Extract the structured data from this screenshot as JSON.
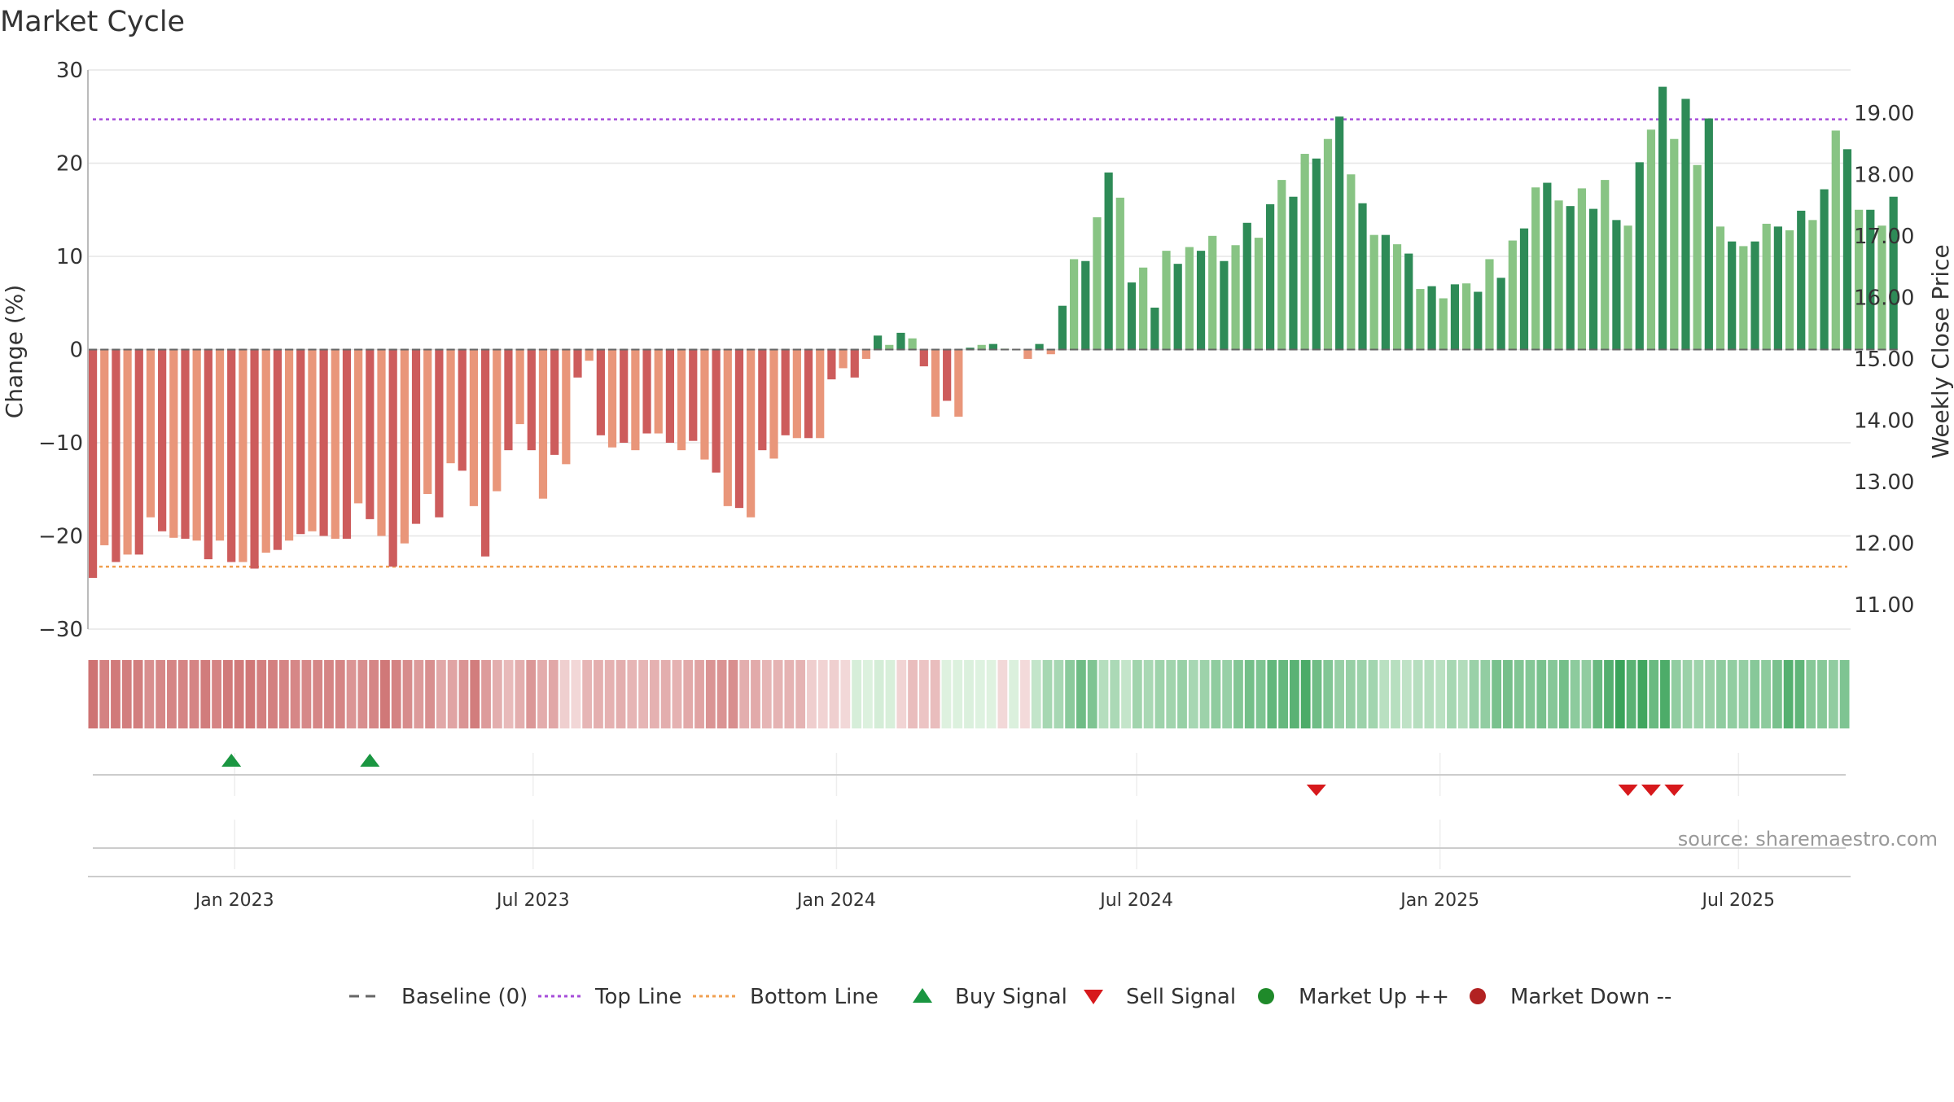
{
  "title": "Market Cycle",
  "source": "source: sharemaestro.com",
  "colors": {
    "up_dark": "#2e8b57",
    "up_light": "#88c484",
    "down_dark": "#cd5c5c",
    "down_light": "#e9967a",
    "top_line": "#a64dd9",
    "bottom_line": "#f0a050",
    "baseline": "#666666",
    "buy": "#1a9641",
    "sell": "#d7191c",
    "market_up": "#1f8a2a",
    "market_down": "#b22222",
    "grid": "#e6e6e6",
    "axis_text": "#333333"
  },
  "chart_data": {
    "type": "bar",
    "title": "Market Cycle",
    "ylabel_left": "Change (%)",
    "ylabel_right": "Weekly Close Price",
    "ylim_left": [
      -30,
      30
    ],
    "ylim_right": [
      10.6,
      19.7
    ],
    "y_ticks_left": [
      30,
      20,
      10,
      0,
      -10,
      -20,
      -30
    ],
    "y_tick_labels_left": [
      "30",
      "20",
      "10",
      "0",
      "−10",
      "−20",
      "−30"
    ],
    "y_ticks_right": [
      19,
      18,
      17,
      16,
      15,
      14,
      13,
      12,
      11
    ],
    "y_tick_labels_right": [
      "19.00",
      "18.00",
      "17.00",
      "16.00",
      "15.00",
      "14.00",
      "13.00",
      "12.00",
      "11.00"
    ],
    "x_start": "2022-10-04",
    "x_end": "2025-09-07",
    "x_ticks": [
      "2023-01-01",
      "2023-07-01",
      "2024-01-01",
      "2024-07-01",
      "2025-01-01",
      "2025-07-01"
    ],
    "x_tick_labels": [
      "Jan 2023",
      "Jul 2023",
      "Jan 2024",
      "Jul 2024",
      "Jan 2025",
      "Jul 2025"
    ],
    "first_bar_date": "2022-10-07",
    "bar_interval_days": 7,
    "bar_values": [
      -24.5,
      -21.0,
      -22.8,
      -22.0,
      -22.0,
      -18.0,
      -19.5,
      -20.2,
      -20.3,
      -20.5,
      -22.5,
      -20.5,
      -22.8,
      -22.8,
      -23.5,
      -21.8,
      -21.5,
      -20.5,
      -19.8,
      -19.5,
      -20.0,
      -20.3,
      -20.3,
      -16.5,
      -18.2,
      -20.0,
      -23.3,
      -20.8,
      -18.7,
      -15.5,
      -18.0,
      -12.2,
      -13.0,
      -16.8,
      -22.2,
      -15.2,
      -10.8,
      -8.0,
      -10.8,
      -16.0,
      -11.3,
      -12.3,
      -3.0,
      -1.2,
      -9.2,
      -10.5,
      -10.0,
      -10.8,
      -9.0,
      -9.0,
      -10.0,
      -10.8,
      -9.8,
      -11.8,
      -13.2,
      -16.8,
      -17.0,
      -18.0,
      -10.8,
      -11.7,
      -9.2,
      -9.5,
      -9.5,
      -9.5,
      -3.2,
      -2.0,
      -3.0,
      -1.0,
      1.5,
      0.5,
      1.8,
      1.2,
      -1.8,
      -7.2,
      -5.5,
      -7.2,
      0.2,
      0.5,
      0.6,
      0.1,
      0.0,
      -1.0,
      0.6,
      -0.5,
      4.7,
      9.7,
      9.5,
      14.2,
      19.0,
      16.3,
      7.2,
      8.8,
      4.5,
      10.6,
      9.2,
      11.0,
      10.6,
      12.2,
      9.5,
      11.2,
      13.6,
      12.0,
      15.6,
      18.2,
      16.4,
      21.0,
      20.5,
      22.6,
      25.0,
      18.8,
      15.7,
      12.3,
      12.3,
      11.3,
      10.3,
      6.5,
      6.8,
      5.5,
      7.0,
      7.1,
      6.2,
      9.7,
      7.7,
      11.7,
      13.0,
      17.4,
      17.9,
      16.0,
      15.4,
      17.3,
      15.1,
      18.2,
      13.9,
      13.3,
      20.1,
      23.6,
      28.2,
      22.6,
      26.9,
      19.8,
      24.8,
      13.2,
      11.6,
      11.1,
      11.6,
      13.5,
      13.2,
      12.8,
      14.9,
      13.9,
      17.2,
      23.5,
      21.5,
      15.0,
      15.0,
      13.3,
      16.4
    ],
    "top_line": 24.7,
    "bottom_line": -23.3,
    "baseline": 0,
    "buy_signals": [
      "2022-12-30",
      "2023-03-24"
    ],
    "sell_signals": [
      "2024-10-18",
      "2025-04-25",
      "2025-05-09",
      "2025-05-23"
    ],
    "market_up_signals": [],
    "market_down_signals": [],
    "legend_position": "bottom-center",
    "legend": [
      {
        "key": "baseline",
        "label": "Baseline (0)",
        "symbol": "dash",
        "color": "#666666"
      },
      {
        "key": "top",
        "label": "Top Line",
        "symbol": "dot",
        "color": "#a64dd9"
      },
      {
        "key": "bottom",
        "label": "Bottom Line",
        "symbol": "dot",
        "color": "#f0a050"
      },
      {
        "key": "buy",
        "label": "Buy Signal",
        "symbol": "triangle-up",
        "color": "#1a9641"
      },
      {
        "key": "sell",
        "label": "Sell Signal",
        "symbol": "triangle-down",
        "color": "#d7191c"
      },
      {
        "key": "up",
        "label": "Market Up ++",
        "symbol": "circle",
        "color": "#1f8a2a"
      },
      {
        "key": "down",
        "label": "Market Down --",
        "symbol": "circle",
        "color": "#b22222"
      }
    ]
  }
}
